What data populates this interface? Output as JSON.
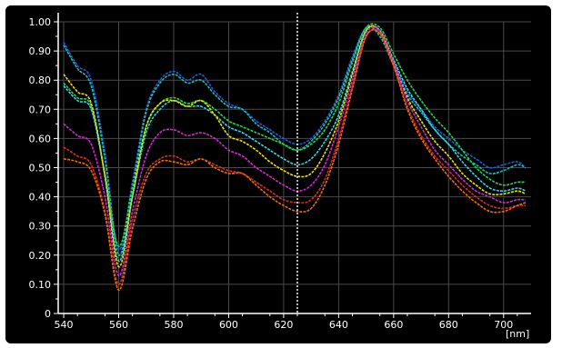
{
  "chart_data": {
    "type": "line",
    "x_unit": "[nm]",
    "xlim": [
      538,
      710
    ],
    "ylim": [
      0,
      1.0
    ],
    "x_ticks": [
      540,
      560,
      580,
      600,
      620,
      640,
      660,
      680,
      700
    ],
    "x_tick_labels": [
      "540",
      "560",
      "580",
      "600",
      "620",
      "640",
      "660",
      "680",
      "700"
    ],
    "y_ticks": [
      0,
      0.1,
      0.2,
      0.3,
      0.4,
      0.5,
      0.6,
      0.7,
      0.8,
      0.9,
      1.0
    ],
    "y_tick_labels": [
      "0",
      "0.10",
      "0.20",
      "0.30",
      "0.40",
      "0.50",
      "0.60",
      "0.70",
      "0.80",
      "0.90",
      "1.00"
    ],
    "grid": true,
    "marker_line": {
      "x": 625,
      "color": "#ffffff",
      "style": "dotted"
    },
    "x": [
      540,
      545,
      550,
      555,
      560,
      565,
      570,
      575,
      580,
      585,
      590,
      595,
      600,
      605,
      610,
      615,
      620,
      625,
      630,
      635,
      640,
      645,
      650,
      655,
      660,
      665,
      670,
      675,
      680,
      685,
      690,
      695,
      700,
      705,
      708
    ],
    "series": [
      {
        "color": "#1e5cd6",
        "values": [
          0.93,
          0.85,
          0.8,
          0.55,
          0.22,
          0.45,
          0.7,
          0.8,
          0.83,
          0.8,
          0.82,
          0.76,
          0.72,
          0.7,
          0.66,
          0.63,
          0.6,
          0.58,
          0.6,
          0.66,
          0.75,
          0.88,
          0.98,
          0.96,
          0.86,
          0.76,
          0.7,
          0.64,
          0.6,
          0.56,
          0.53,
          0.5,
          0.51,
          0.52,
          0.5
        ]
      },
      {
        "color": "#22b8b0",
        "values": [
          0.92,
          0.84,
          0.78,
          0.53,
          0.2,
          0.43,
          0.69,
          0.79,
          0.82,
          0.79,
          0.8,
          0.75,
          0.71,
          0.7,
          0.65,
          0.62,
          0.58,
          0.56,
          0.59,
          0.65,
          0.74,
          0.87,
          0.98,
          0.95,
          0.85,
          0.75,
          0.69,
          0.63,
          0.58,
          0.54,
          0.51,
          0.48,
          0.49,
          0.51,
          0.5
        ]
      },
      {
        "color": "#22d648",
        "values": [
          0.79,
          0.74,
          0.71,
          0.48,
          0.23,
          0.43,
          0.64,
          0.72,
          0.74,
          0.72,
          0.73,
          0.7,
          0.66,
          0.64,
          0.62,
          0.6,
          0.58,
          0.56,
          0.58,
          0.63,
          0.72,
          0.86,
          0.98,
          0.98,
          0.89,
          0.8,
          0.73,
          0.67,
          0.62,
          0.56,
          0.5,
          0.46,
          0.44,
          0.45,
          0.45
        ]
      },
      {
        "color": "#3ad4e0",
        "values": [
          0.78,
          0.73,
          0.7,
          0.47,
          0.18,
          0.4,
          0.62,
          0.7,
          0.73,
          0.71,
          0.71,
          0.68,
          0.64,
          0.62,
          0.59,
          0.56,
          0.53,
          0.51,
          0.53,
          0.59,
          0.68,
          0.83,
          0.97,
          0.97,
          0.87,
          0.77,
          0.7,
          0.63,
          0.58,
          0.52,
          0.47,
          0.43,
          0.42,
          0.43,
          0.42
        ]
      },
      {
        "color": "#f2e000",
        "values": [
          0.82,
          0.76,
          0.72,
          0.47,
          0.16,
          0.4,
          0.64,
          0.72,
          0.73,
          0.71,
          0.73,
          0.68,
          0.61,
          0.59,
          0.56,
          0.52,
          0.49,
          0.47,
          0.48,
          0.55,
          0.66,
          0.82,
          0.97,
          0.97,
          0.86,
          0.74,
          0.66,
          0.59,
          0.54,
          0.48,
          0.44,
          0.41,
          0.41,
          0.42,
          0.41
        ]
      },
      {
        "color": "#d22ad2",
        "values": [
          0.65,
          0.61,
          0.58,
          0.4,
          0.13,
          0.35,
          0.54,
          0.62,
          0.63,
          0.61,
          0.62,
          0.6,
          0.56,
          0.54,
          0.5,
          0.47,
          0.44,
          0.42,
          0.44,
          0.51,
          0.64,
          0.8,
          0.96,
          0.97,
          0.86,
          0.73,
          0.64,
          0.56,
          0.51,
          0.46,
          0.42,
          0.4,
          0.38,
          0.39,
          0.39
        ]
      },
      {
        "color": "#e02a18",
        "values": [
          0.57,
          0.54,
          0.51,
          0.35,
          0.1,
          0.32,
          0.48,
          0.53,
          0.54,
          0.52,
          0.53,
          0.51,
          0.49,
          0.48,
          0.45,
          0.42,
          0.39,
          0.38,
          0.39,
          0.46,
          0.6,
          0.78,
          0.95,
          0.96,
          0.85,
          0.71,
          0.61,
          0.54,
          0.49,
          0.44,
          0.4,
          0.37,
          0.36,
          0.37,
          0.37
        ]
      },
      {
        "color": "#f06a0a",
        "values": [
          0.53,
          0.52,
          0.49,
          0.34,
          0.08,
          0.29,
          0.46,
          0.52,
          0.52,
          0.51,
          0.53,
          0.5,
          0.48,
          0.48,
          0.44,
          0.4,
          0.37,
          0.35,
          0.36,
          0.44,
          0.58,
          0.77,
          0.95,
          0.96,
          0.85,
          0.7,
          0.6,
          0.53,
          0.47,
          0.42,
          0.38,
          0.35,
          0.35,
          0.37,
          0.38
        ]
      }
    ]
  }
}
